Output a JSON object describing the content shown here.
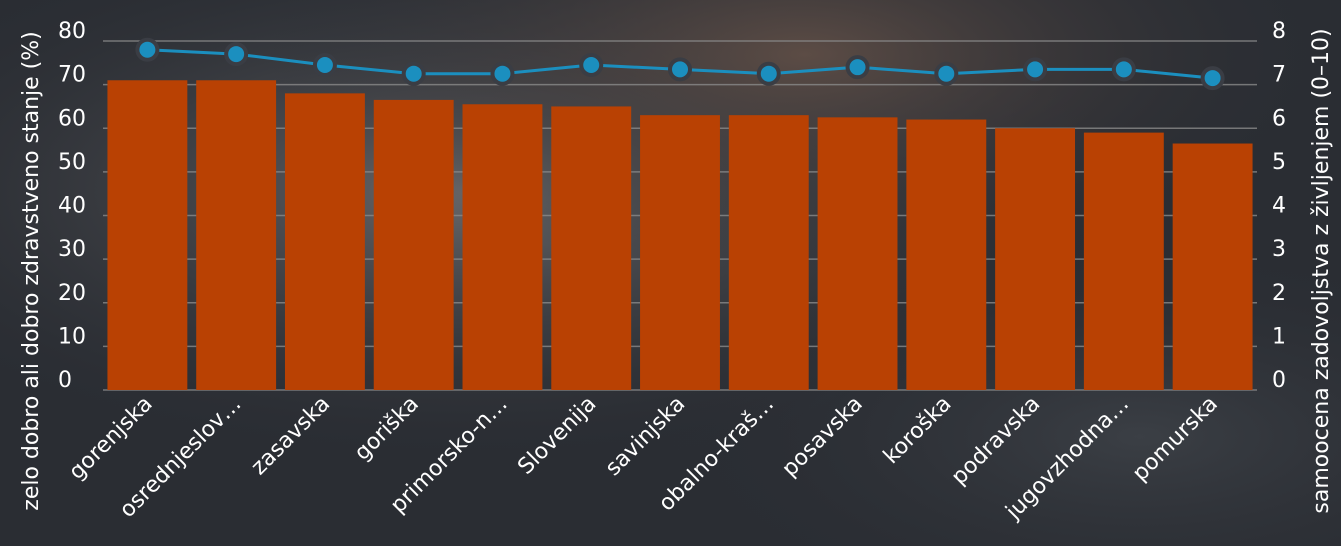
{
  "chart_data": {
    "type": "bar",
    "categories": [
      "gorenjska",
      "osrednjeslov…",
      "zasavska",
      "goriška",
      "primorsko-n…",
      "Slovenija",
      "savinjska",
      "obalno-kraš…",
      "posavska",
      "koroška",
      "podravska",
      "jugovzhodna…",
      "pomurska"
    ],
    "series": [
      {
        "type": "bar",
        "axis": "left",
        "color": "#b94103",
        "values": [
          71,
          71,
          68,
          66.5,
          65.5,
          65,
          63,
          63,
          62.5,
          62,
          60,
          59,
          56.5
        ]
      },
      {
        "type": "line",
        "axis": "right",
        "color": "#1b8fbf",
        "values": [
          7.8,
          7.7,
          7.45,
          7.25,
          7.25,
          7.45,
          7.35,
          7.25,
          7.4,
          7.25,
          7.35,
          7.35,
          7.15
        ]
      }
    ],
    "ylabel": "zelo dobro ali dobro zdravstveno stanje (%)",
    "y2label": "samoocena zadovoljstva z življenjem (0–10)",
    "ylim": [
      0,
      80
    ],
    "y2lim": [
      0,
      8
    ],
    "yticks": [
      "0",
      "10",
      "20",
      "30",
      "40",
      "50",
      "60",
      "70",
      "80"
    ],
    "y2ticks": [
      "0",
      "1",
      "2",
      "3",
      "4",
      "5",
      "6",
      "7",
      "8"
    ],
    "grid": true,
    "colors": {
      "bar": "#b94103",
      "line": "#1b8fbf",
      "grid": "#8a8a8a",
      "text": "#ffffff"
    }
  }
}
